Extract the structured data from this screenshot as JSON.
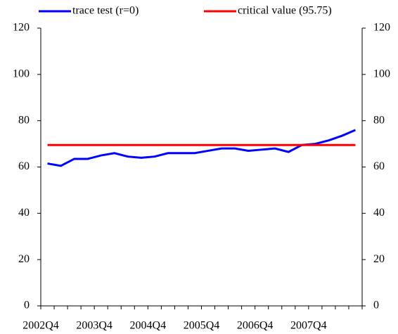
{
  "chart_data": {
    "type": "line",
    "categories": [
      "2002Q4",
      null,
      null,
      null,
      "2003Q4",
      null,
      null,
      null,
      "2004Q4",
      null,
      null,
      null,
      "2005Q4",
      null,
      null,
      null,
      "2006Q4",
      null,
      null,
      null,
      "2007Q4",
      null,
      null,
      null
    ],
    "series": [
      {
        "name": "trace test (r=0)",
        "color": "#0000ff",
        "values": [
          61.5,
          60.5,
          63.5,
          63.5,
          65,
          66,
          64.5,
          64,
          64.5,
          66,
          66,
          66,
          67,
          68,
          68,
          67,
          67.5,
          68,
          66.5,
          69.5,
          70,
          71.5,
          73.5,
          76
        ]
      },
      {
        "name": "critical value (95.75)",
        "color": "#ff0000",
        "values": [
          69.5,
          69.5,
          69.5,
          69.5,
          69.5,
          69.5,
          69.5,
          69.5,
          69.5,
          69.5,
          69.5,
          69.5,
          69.5,
          69.5,
          69.5,
          69.5,
          69.5,
          69.5,
          69.5,
          69.5,
          69.5,
          69.5,
          69.5,
          69.5
        ]
      }
    ],
    "ylim": [
      0,
      120
    ],
    "yticks": [
      0,
      20,
      40,
      60,
      80,
      100,
      120
    ],
    "legend": "top"
  }
}
